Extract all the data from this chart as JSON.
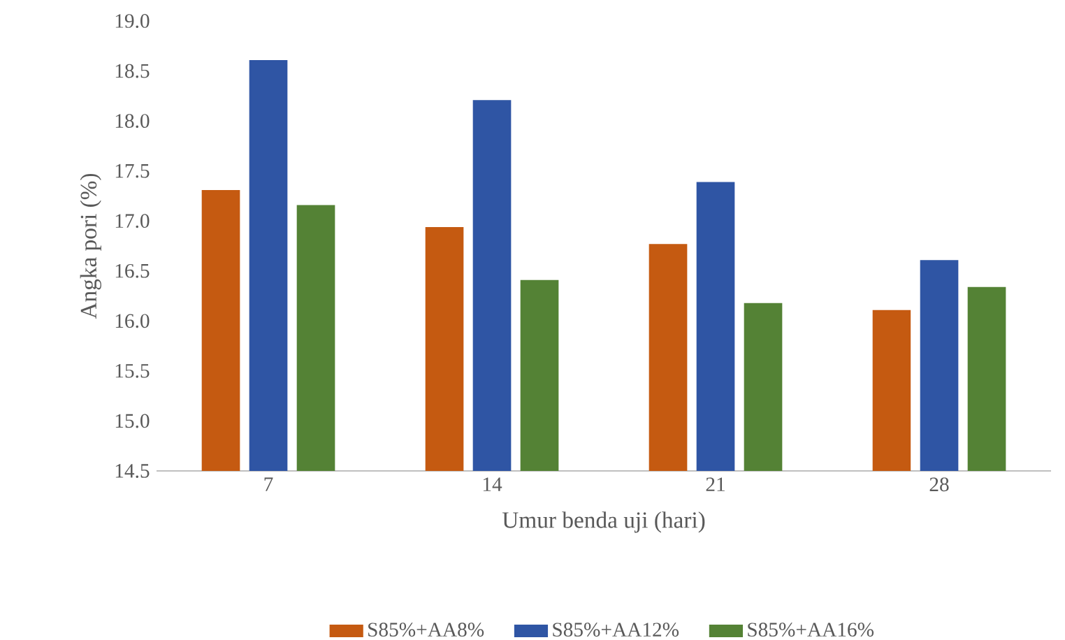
{
  "chart_data": {
    "type": "bar",
    "xlabel": "Umur benda uji (hari)",
    "ylabel": "Angka pori (%)",
    "categories": [
      "7",
      "14",
      "21",
      "28"
    ],
    "series": [
      {
        "name": "S85%+AA8%",
        "color": "#c55a11",
        "values": [
          17.3,
          16.93,
          16.76,
          16.1
        ]
      },
      {
        "name": "S85%+AA12%",
        "color": "#2f55a4",
        "values": [
          18.6,
          18.2,
          17.38,
          16.6
        ]
      },
      {
        "name": "S85%+AA16%",
        "color": "#548235",
        "values": [
          17.15,
          16.4,
          16.17,
          16.33
        ]
      }
    ],
    "ylim": [
      14.5,
      19.0
    ],
    "yticks": [
      {
        "value": 14.5,
        "label": "14.5"
      },
      {
        "value": 15,
        "label": "15.0"
      },
      {
        "value": 15.5,
        "label": "15.5"
      },
      {
        "value": 16,
        "label": "16.0"
      },
      {
        "value": 16.5,
        "label": "16.5"
      },
      {
        "value": 17,
        "label": "17.0"
      },
      {
        "value": 17.5,
        "label": "17.5"
      },
      {
        "value": 18,
        "label": "18.0"
      },
      {
        "value": 18.5,
        "label": "18.5"
      },
      {
        "value": 19,
        "label": "19.0"
      }
    ],
    "grid": false,
    "legend": "bottom"
  }
}
